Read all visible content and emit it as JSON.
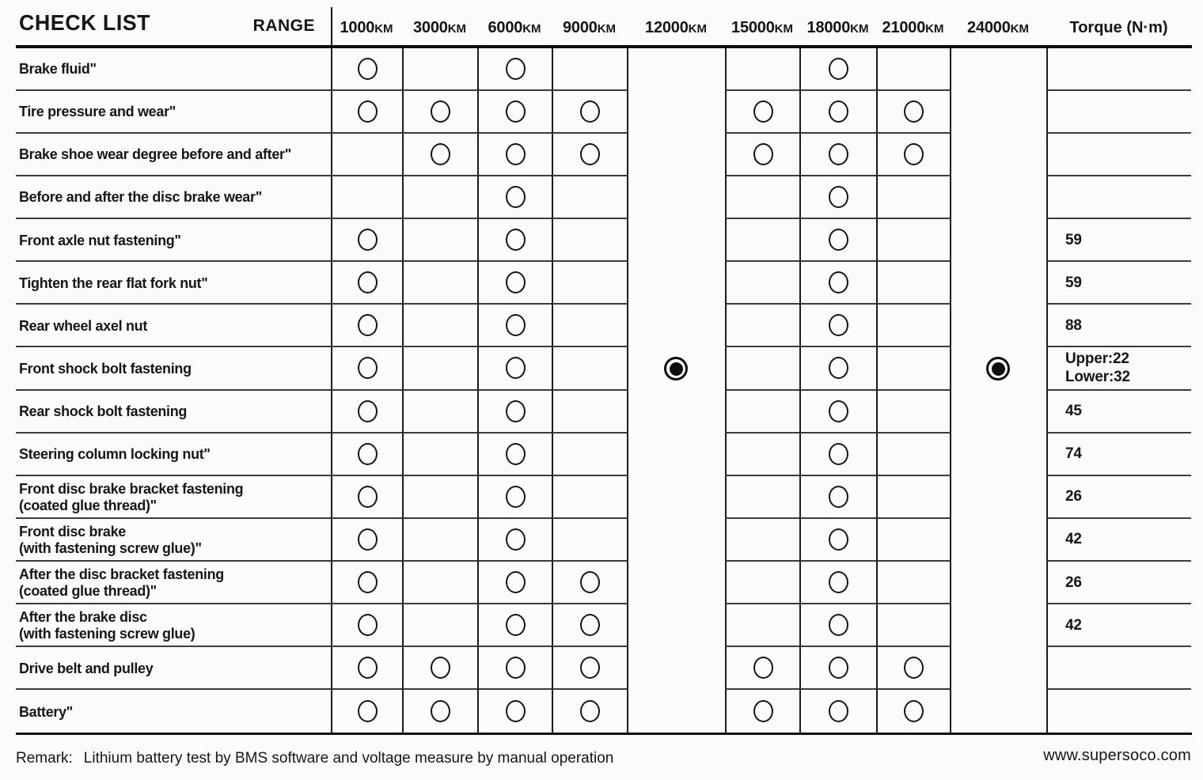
{
  "page": {
    "title": "CHECK LIST",
    "range_label": "RANGE",
    "remark_label": "Remark:",
    "remark_text": "Lithium battery test by BMS software and voltage measure by manual operation",
    "website": "www.supersoco.com"
  },
  "table": {
    "torque_header": "Torque (N·m)",
    "interval_columns": [
      {
        "id": "1000km",
        "num": "1000",
        "unit": "KM",
        "merged": false
      },
      {
        "id": "3000km",
        "num": "3000",
        "unit": "KM",
        "merged": false
      },
      {
        "id": "6000km",
        "num": "6000",
        "unit": "KM",
        "merged": false
      },
      {
        "id": "9000km",
        "num": "9000",
        "unit": "KM",
        "merged": false
      },
      {
        "id": "12000km",
        "num": "12000",
        "unit": "KM",
        "merged": true
      },
      {
        "id": "15000km",
        "num": "15000",
        "unit": "KM",
        "merged": false
      },
      {
        "id": "18000km",
        "num": "18000",
        "unit": "KM",
        "merged": false
      },
      {
        "id": "21000km",
        "num": "21000",
        "unit": "KM",
        "merged": false
      },
      {
        "id": "24000km",
        "num": "24000",
        "unit": "KM",
        "merged": true
      }
    ],
    "check_columns_order": [
      "1000km",
      "3000km",
      "6000km",
      "9000km",
      "15000km",
      "18000km",
      "21000km"
    ],
    "merged_column_mark": "filled-dot",
    "rows": [
      {
        "label": "Brake fluid\"",
        "checks": [
          1,
          0,
          1,
          0,
          0,
          1,
          0
        ],
        "torque": ""
      },
      {
        "label": "Tire pressure and wear\"",
        "checks": [
          1,
          1,
          1,
          1,
          1,
          1,
          1
        ],
        "torque": ""
      },
      {
        "label": "Brake shoe wear degree before and after\"",
        "checks": [
          0,
          1,
          1,
          1,
          1,
          1,
          1
        ],
        "torque": ""
      },
      {
        "label": "Before and after the disc brake wear\"",
        "checks": [
          0,
          0,
          1,
          0,
          0,
          1,
          0
        ],
        "torque": ""
      },
      {
        "label": "Front axle nut fastening\"",
        "checks": [
          1,
          0,
          1,
          0,
          0,
          1,
          0
        ],
        "torque": "59"
      },
      {
        "label": "Tighten the rear flat fork nut\"",
        "checks": [
          1,
          0,
          1,
          0,
          0,
          1,
          0
        ],
        "torque": "59"
      },
      {
        "label": "Rear wheel axel nut",
        "checks": [
          1,
          0,
          1,
          0,
          0,
          1,
          0
        ],
        "torque": "88"
      },
      {
        "label": "Front shock bolt fastening",
        "checks": [
          1,
          0,
          1,
          0,
          0,
          1,
          0
        ],
        "torque": [
          "Upper:22",
          "Lower:32"
        ]
      },
      {
        "label": "Rear shock bolt fastening",
        "checks": [
          1,
          0,
          1,
          0,
          0,
          1,
          0
        ],
        "torque": "45"
      },
      {
        "label": "Steering column locking nut\"",
        "checks": [
          1,
          0,
          1,
          0,
          0,
          1,
          0
        ],
        "torque": "74"
      },
      {
        "label": "Front disc brake bracket fastening",
        "label2": "(coated glue thread)\"",
        "checks": [
          1,
          0,
          1,
          0,
          0,
          1,
          0
        ],
        "torque": "26"
      },
      {
        "label": "Front disc brake",
        "label2": "(with fastening screw glue)\"",
        "checks": [
          1,
          0,
          1,
          0,
          0,
          1,
          0
        ],
        "torque": "42"
      },
      {
        "label": "After the disc bracket fastening",
        "label2": "(coated glue thread)\"",
        "checks": [
          1,
          0,
          1,
          1,
          0,
          1,
          0
        ],
        "torque": "26"
      },
      {
        "label": "After the brake disc",
        "label2": "(with fastening screw glue)",
        "checks": [
          1,
          0,
          1,
          1,
          0,
          1,
          0
        ],
        "torque": "42"
      },
      {
        "label": "Drive belt and pulley",
        "checks": [
          1,
          1,
          1,
          1,
          1,
          1,
          1
        ],
        "torque": ""
      },
      {
        "label": "Battery\"",
        "checks": [
          1,
          1,
          1,
          1,
          1,
          1,
          1
        ],
        "torque": ""
      }
    ],
    "colors": {
      "paper": "#fbfbf9",
      "ink": "#161616",
      "thin_rule": "#3b3b3b",
      "thick_rule": "#0d0d0d"
    }
  }
}
